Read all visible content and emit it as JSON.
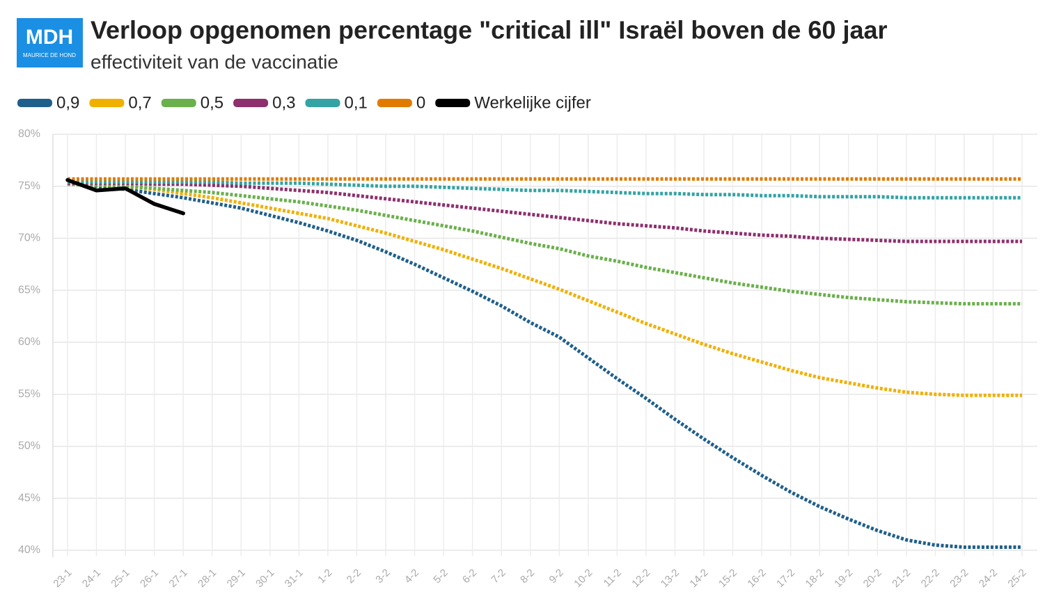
{
  "chart_data": {
    "type": "line",
    "logo": "MDH",
    "logo_subtext": "MAURICE DE HOND",
    "title": "Verloop opgenomen percentage \"critical ill\" Israël boven de 60 jaar",
    "subtitle": "effectiviteit van de vaccinatie",
    "categories": [
      "23-1",
      "24-1",
      "25-1",
      "26-1",
      "27-1",
      "28-1",
      "29-1",
      "30-1",
      "31-1",
      "1-2",
      "2-2",
      "3-2",
      "4-2",
      "5-2",
      "6-2",
      "7-2",
      "8-2",
      "9-2",
      "10-2",
      "11-2",
      "12-2",
      "13-2",
      "14-2",
      "15-2",
      "16-2",
      "17-2",
      "18-2",
      "19-2",
      "20-2",
      "21-2",
      "22-2",
      "23-2",
      "24-2",
      "25-2"
    ],
    "ylim": [
      40,
      80
    ],
    "yticks": [
      {
        "value": 40,
        "label": "40%"
      },
      {
        "value": 45,
        "label": "45%"
      },
      {
        "value": 50,
        "label": "50%"
      },
      {
        "value": 55,
        "label": "55%"
      },
      {
        "value": 60,
        "label": "60%"
      },
      {
        "value": 65,
        "label": "65%"
      },
      {
        "value": 70,
        "label": "70%"
      },
      {
        "value": 75,
        "label": "75%"
      },
      {
        "value": 80,
        "label": "80%"
      }
    ],
    "grid": true,
    "series": [
      {
        "name": "0,9",
        "color": "#1f5f8b",
        "dashed": true,
        "values": [
          75.3,
          75.0,
          74.7,
          74.3,
          73.9,
          73.4,
          72.9,
          72.2,
          71.5,
          70.7,
          69.8,
          68.7,
          67.5,
          66.2,
          64.9,
          63.5,
          61.9,
          60.5,
          58.5,
          56.5,
          54.6,
          52.6,
          50.7,
          48.9,
          47.2,
          45.6,
          44.2,
          43.0,
          41.9,
          41.0,
          40.5,
          40.3,
          40.3,
          40.3
        ]
      },
      {
        "name": "0,7",
        "color": "#f0b000",
        "dashed": true,
        "values": [
          75.4,
          75.2,
          75.0,
          74.7,
          74.3,
          73.9,
          73.4,
          72.9,
          72.4,
          71.9,
          71.2,
          70.5,
          69.7,
          68.9,
          68.0,
          67.1,
          66.1,
          65.1,
          64.0,
          62.9,
          61.8,
          60.8,
          59.8,
          58.9,
          58.1,
          57.3,
          56.6,
          56.1,
          55.6,
          55.2,
          55.0,
          54.9,
          54.9,
          54.9
        ]
      },
      {
        "name": "0,5",
        "color": "#6ab04c",
        "dashed": true,
        "values": [
          75.2,
          75.1,
          75.0,
          74.8,
          74.6,
          74.4,
          74.1,
          73.8,
          73.5,
          73.1,
          72.7,
          72.2,
          71.7,
          71.2,
          70.7,
          70.1,
          69.5,
          69.0,
          68.3,
          67.8,
          67.2,
          66.7,
          66.2,
          65.7,
          65.3,
          64.9,
          64.6,
          64.3,
          64.1,
          63.9,
          63.8,
          63.7,
          63.7,
          63.7
        ]
      },
      {
        "name": "0,3",
        "color": "#8e2f6e",
        "dashed": true,
        "values": [
          75.3,
          75.3,
          75.3,
          75.2,
          75.2,
          75.1,
          75.0,
          74.8,
          74.6,
          74.4,
          74.1,
          73.8,
          73.5,
          73.2,
          72.9,
          72.6,
          72.3,
          72.0,
          71.7,
          71.4,
          71.2,
          71.0,
          70.7,
          70.5,
          70.3,
          70.2,
          70.0,
          69.9,
          69.8,
          69.7,
          69.7,
          69.7,
          69.7,
          69.7
        ]
      },
      {
        "name": "0,1",
        "color": "#33a3a3",
        "dashed": true,
        "values": [
          75.4,
          75.4,
          75.4,
          75.4,
          75.4,
          75.4,
          75.3,
          75.3,
          75.3,
          75.2,
          75.1,
          75.0,
          75.0,
          74.9,
          74.8,
          74.7,
          74.6,
          74.6,
          74.5,
          74.4,
          74.3,
          74.3,
          74.2,
          74.2,
          74.1,
          74.1,
          74.0,
          74.0,
          74.0,
          73.9,
          73.9,
          73.9,
          73.9,
          73.9
        ]
      },
      {
        "name": "0",
        "color": "#e07b00",
        "dashed": true,
        "values": [
          75.7,
          75.7,
          75.7,
          75.7,
          75.7,
          75.7,
          75.7,
          75.7,
          75.7,
          75.7,
          75.7,
          75.7,
          75.7,
          75.7,
          75.7,
          75.7,
          75.7,
          75.7,
          75.7,
          75.7,
          75.7,
          75.7,
          75.7,
          75.7,
          75.7,
          75.7,
          75.7,
          75.7,
          75.7,
          75.7,
          75.7,
          75.7,
          75.7,
          75.7
        ]
      },
      {
        "name": "Werkelijke cijfer",
        "color": "#000000",
        "dashed": false,
        "values": [
          75.6,
          74.6,
          74.8,
          73.3,
          72.4,
          null,
          null,
          null,
          null,
          null,
          null,
          null,
          null,
          null,
          null,
          null,
          null,
          null,
          null,
          null,
          null,
          null,
          null,
          null,
          null,
          null,
          null,
          null,
          null,
          null,
          null,
          null,
          null,
          null
        ]
      }
    ]
  }
}
